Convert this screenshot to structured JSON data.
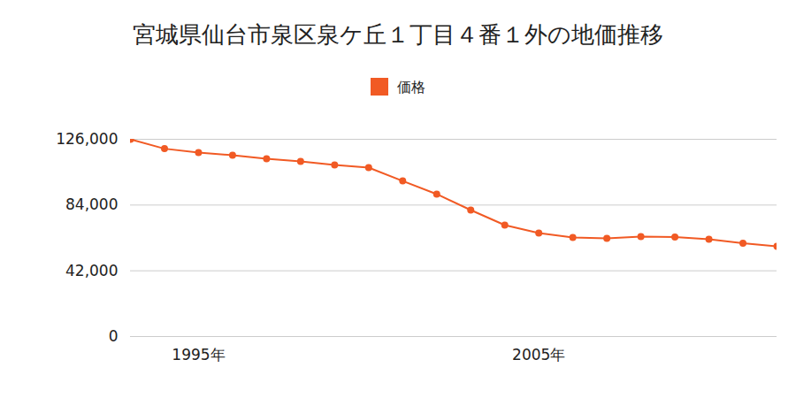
{
  "chart_data": {
    "type": "line",
    "title": "宮城県仙台市泉区泉ケ丘１丁目４番１外の地価推移",
    "x": [
      1993,
      1994,
      1995,
      1996,
      1997,
      1998,
      1999,
      2000,
      2001,
      2002,
      2003,
      2004,
      2005,
      2006,
      2007,
      2008,
      2009,
      2010,
      2011,
      2012
    ],
    "series": [
      {
        "name": "価格",
        "color": "#f15a24",
        "marker": "circle",
        "values": [
          126000,
          120000,
          117500,
          115800,
          113600,
          111900,
          109600,
          107900,
          99400,
          91000,
          80800,
          71200,
          66100,
          63300,
          62700,
          63800,
          63600,
          62100,
          59600,
          57600
        ]
      }
    ],
    "xlim": [
      1993,
      2012
    ],
    "xticks": [
      {
        "value": 1995,
        "label": "1995年"
      },
      {
        "value": 2005,
        "label": "2005年"
      }
    ],
    "ylim": [
      0,
      126000
    ],
    "yticks": [
      0,
      {
        "value": 42000,
        "label": "42,000"
      },
      {
        "value": 84000,
        "label": "84,000"
      },
      {
        "value": 126000,
        "label": "126,000"
      }
    ],
    "grid": true,
    "legend": "top"
  }
}
